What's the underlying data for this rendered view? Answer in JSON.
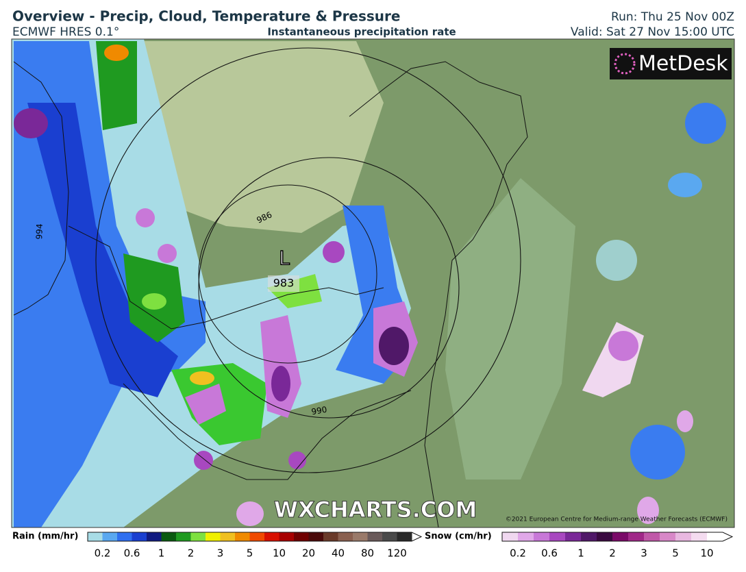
{
  "header": {
    "title": "Overview - Precip, Cloud, Temperature & Pressure",
    "model": "ECMWF HRES 0.1°",
    "subtitle": "Instantaneous precipitation rate",
    "run": "Run: Thu 25 Nov 00Z",
    "valid": "Valid: Sat 27 Nov 15:00 UTC"
  },
  "logo": {
    "text": "MetDesk"
  },
  "map": {
    "isobar_labels": [
      "994",
      "986",
      "990"
    ],
    "low_symbol": "L",
    "low_value": "983",
    "watermark": "WXCHARTS.COM",
    "copyright": "©2021 European Centre for Medium-range Weather Forecasts (ECMWF)"
  },
  "legend": {
    "rain": {
      "label": "Rain (mm/hr)",
      "ticks": [
        "0.2",
        "0.6",
        "1",
        "2",
        "3",
        "5",
        "10",
        "20",
        "40",
        "80",
        "120"
      ],
      "colors": [
        "#a8dce6",
        "#5aa8f0",
        "#2f6ff0",
        "#1a3fd0",
        "#101a80",
        "#0a5a10",
        "#1f9a20",
        "#7ee040",
        "#f0f000",
        "#f0c020",
        "#f08a00",
        "#f04a00",
        "#d81000",
        "#a80000",
        "#700000",
        "#4a0a0a",
        "#6a3a2a",
        "#8a6050",
        "#9a7a6a",
        "#6a5a5a",
        "#4a4a4a",
        "#2a2a2a"
      ]
    },
    "snow": {
      "label": "Snow (cm/hr)",
      "ticks": [
        "0.2",
        "0.6",
        "1",
        "2",
        "3",
        "5",
        "10"
      ],
      "colors": [
        "#f0d8f0",
        "#e0a8e8",
        "#c878d8",
        "#a848c0",
        "#7a2898",
        "#501868",
        "#3a0a40",
        "#7a0a68",
        "#a02888",
        "#c058a8",
        "#d888c8",
        "#e8b8e0",
        "#f4dcf0",
        "#ffffff"
      ]
    }
  }
}
